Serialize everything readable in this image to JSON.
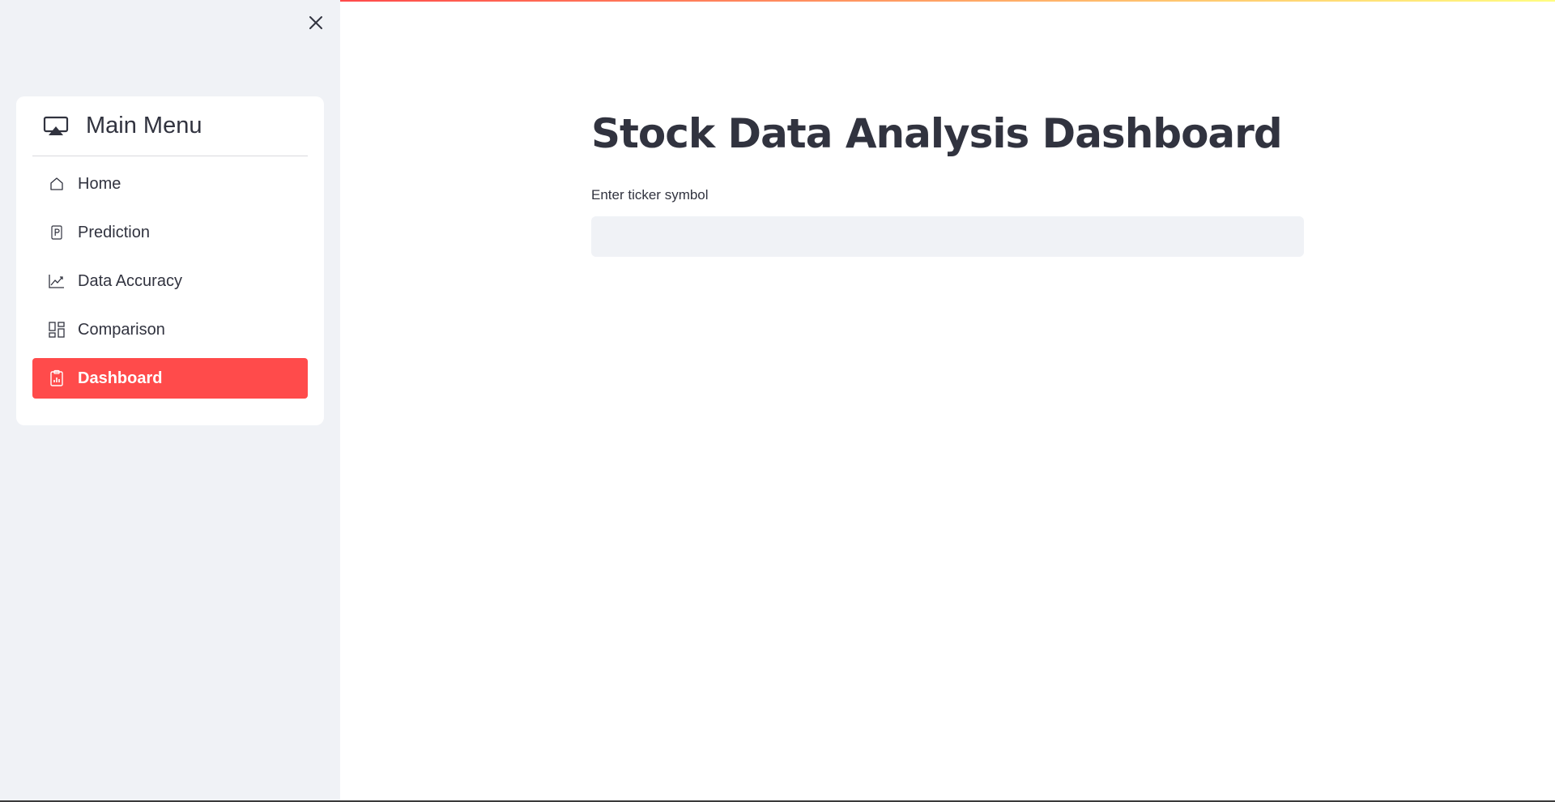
{
  "sidebar": {
    "menu": {
      "title": "Main Menu",
      "items": [
        {
          "label": "Home",
          "icon": "house-icon",
          "active": false
        },
        {
          "label": "Prediction",
          "icon": "p-square-icon",
          "active": false
        },
        {
          "label": "Data Accuracy",
          "icon": "graph-up-icon",
          "active": false
        },
        {
          "label": "Comparison",
          "icon": "grid-icon",
          "active": false
        },
        {
          "label": "Dashboard",
          "icon": "clipboard-data-icon",
          "active": true
        }
      ]
    }
  },
  "main": {
    "title": "Stock Data Analysis Dashboard",
    "ticker_input": {
      "label": "Enter ticker symbol",
      "value": "",
      "placeholder": ""
    }
  },
  "colors": {
    "accent": "#ff4b4b",
    "sidebar_bg": "#f0f2f6",
    "text": "#31333f"
  }
}
